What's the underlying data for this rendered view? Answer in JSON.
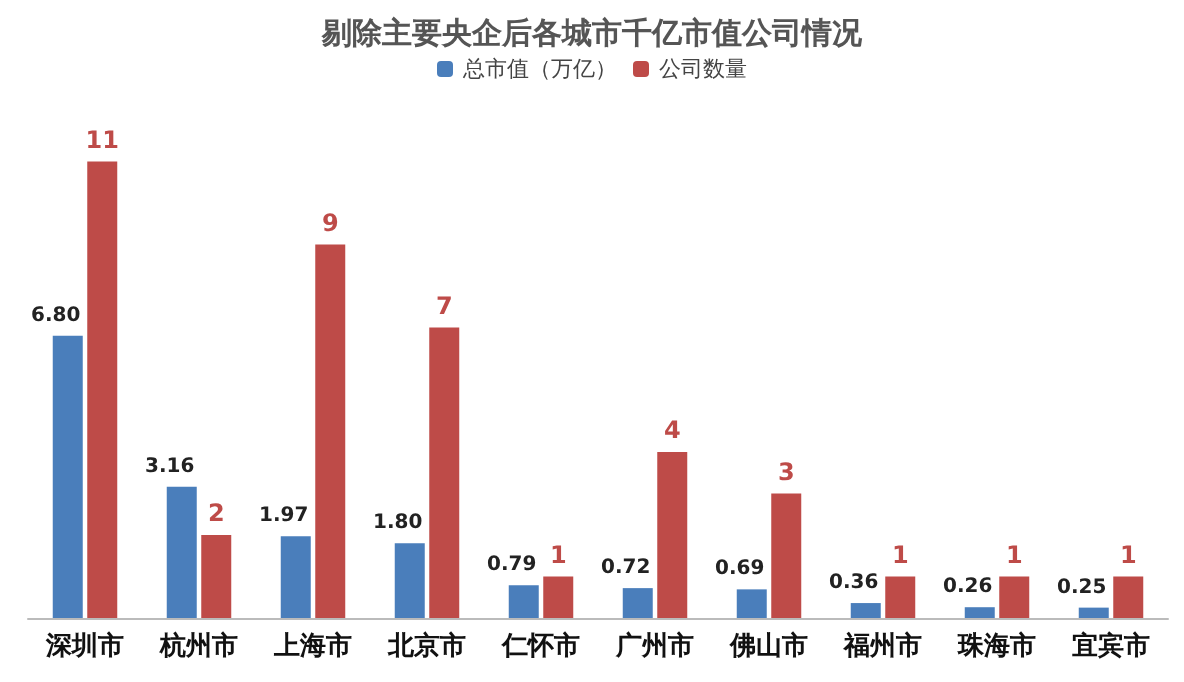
{
  "chart_data": {
    "type": "bar",
    "title": "剔除主要央企后各城市千亿市值公司情况",
    "categories": [
      "深圳市",
      "杭州市",
      "上海市",
      "北京市",
      "仁怀市",
      "广州市",
      "佛山市",
      "福州市",
      "珠海市",
      "宜宾市"
    ],
    "series": [
      {
        "name": "总市值（万亿）",
        "color": "#4a7ebb",
        "values": [
          6.8,
          3.16,
          1.97,
          1.8,
          0.79,
          0.72,
          0.69,
          0.36,
          0.26,
          0.25
        ],
        "value_labels": [
          "6.80",
          "3.16",
          "1.97",
          "1.80",
          "0.79",
          "0.72",
          "0.69",
          "0.36",
          "0.26",
          "0.25"
        ]
      },
      {
        "name": "公司数量",
        "color": "#be4b48",
        "values": [
          11,
          2,
          9,
          7,
          1,
          4,
          3,
          1,
          1,
          1
        ],
        "value_labels": [
          "11",
          "2",
          "9",
          "7",
          "1",
          "4",
          "3",
          "1",
          "1",
          "1"
        ]
      }
    ],
    "legend": "top"
  }
}
